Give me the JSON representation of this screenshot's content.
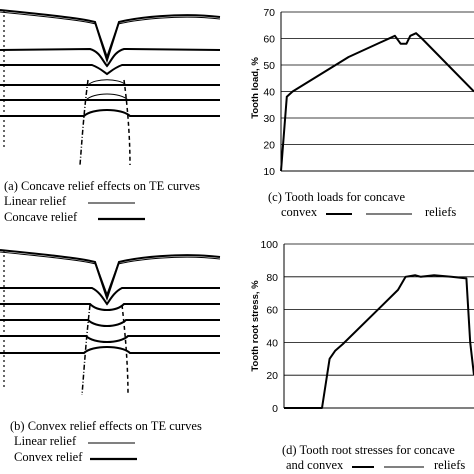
{
  "chart_data": [
    {
      "id": "a",
      "type": "line",
      "caption": "(a) Concave relief effects on TE curves",
      "legend": [
        "Linear relief",
        "Concave relief"
      ]
    },
    {
      "id": "c",
      "type": "line",
      "caption_line1": "(c) Tooth loads for concave",
      "caption_line2_a": "convex",
      "caption_line2_b": "reliefs",
      "ylabel": "Tooth load, %",
      "ylim": [
        10,
        70
      ],
      "yticks": [
        "70",
        "60",
        "50",
        "40",
        "30",
        "20",
        "10"
      ],
      "grid": true,
      "series": [
        {
          "x": [
            0.0,
            0.03,
            0.06,
            0.35,
            0.59,
            0.62,
            0.65,
            0.67,
            0.7,
            0.73,
            1.0
          ],
          "values": [
            10,
            38,
            40,
            53,
            61,
            58,
            58,
            61,
            62,
            60,
            40
          ]
        }
      ]
    },
    {
      "id": "b",
      "type": "line",
      "caption": "(b) Convex relief effects on TE curves",
      "legend": [
        "Linear relief",
        "Convex relief"
      ]
    },
    {
      "id": "d",
      "type": "line",
      "caption_line1": "(d) Tooth root stresses for concave",
      "caption_line2_a": "and convex",
      "caption_line2_b": "reliefs",
      "ylabel": "Tooth root stress, %",
      "ylim": [
        0,
        100
      ],
      "yticks": [
        "100",
        "80",
        "60",
        "40",
        "20",
        "0"
      ],
      "grid": true,
      "series": [
        {
          "x": [
            0.0,
            0.2,
            0.24,
            0.27,
            0.31,
            0.6,
            0.64,
            0.69,
            0.72,
            0.79,
            0.88,
            0.96,
            0.98,
            1.0
          ],
          "values": [
            0,
            0,
            30,
            35,
            39,
            72,
            80,
            81,
            80,
            81,
            80,
            79,
            40,
            20
          ]
        }
      ]
    }
  ]
}
